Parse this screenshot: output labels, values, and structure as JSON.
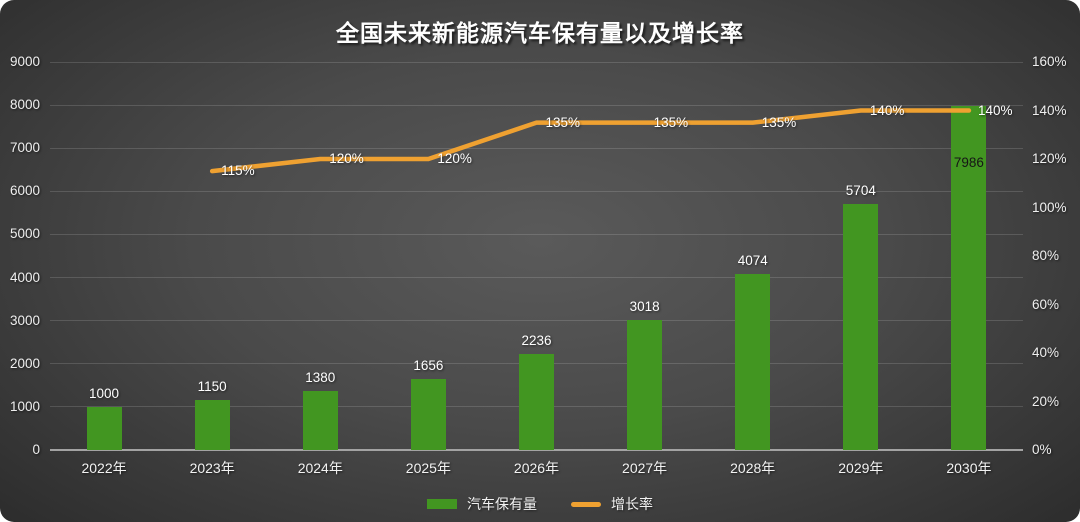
{
  "title": "全国未来新能源汽车保有量以及增长率",
  "legend": {
    "items": [
      {
        "label": "汽车保有量",
        "type": "bar",
        "color": "#429621"
      },
      {
        "label": "增长率",
        "type": "line",
        "color": "#efa131"
      }
    ],
    "position": "bottom"
  },
  "colors": {
    "background_center": "#5a5a5a",
    "background_edge": "#242424",
    "bar": "#429621",
    "line": "#efa131",
    "text": "#f2f2f2",
    "gridline": "rgba(255,255,255,0.14)",
    "axis_line": "#a3a3a3"
  },
  "chart_data": {
    "type": "bar",
    "subtype": "combo-bar-line-dual-axis",
    "title": "全国未来新能源汽车保有量以及增长率",
    "categories": [
      "2022年",
      "2023年",
      "2024年",
      "2025年",
      "2026年",
      "2027年",
      "2028年",
      "2029年",
      "2030年"
    ],
    "series": [
      {
        "name": "汽车保有量",
        "type": "bar",
        "axis": "left",
        "color": "#429621",
        "values": [
          1000,
          1150,
          1380,
          1656,
          2236,
          3018,
          4074,
          5704,
          7986
        ],
        "data_labels": [
          "1000",
          "1150",
          "1380",
          "1656",
          "2236",
          "3018",
          "4074",
          "5704",
          "7986"
        ]
      },
      {
        "name": "增长率",
        "type": "line",
        "axis": "right",
        "color": "#efa131",
        "unit": "%",
        "values": [
          null,
          115,
          120,
          120,
          135,
          135,
          135,
          140,
          140
        ],
        "data_labels": [
          null,
          "115%",
          "120%",
          "120%",
          "135%",
          "135%",
          "135%",
          "140%",
          "140%"
        ]
      }
    ],
    "left_axis": {
      "min": 0,
      "max": 9000,
      "step": 1000,
      "ticks": [
        "0",
        "1000",
        "2000",
        "3000",
        "4000",
        "5000",
        "6000",
        "7000",
        "8000",
        "9000"
      ]
    },
    "right_axis": {
      "min": 0,
      "max": 160,
      "step": 20,
      "ticks": [
        "0%",
        "20%",
        "40%",
        "60%",
        "80%",
        "100%",
        "120%",
        "140%",
        "160%"
      ]
    },
    "grid": true,
    "legend_position": "bottom"
  }
}
